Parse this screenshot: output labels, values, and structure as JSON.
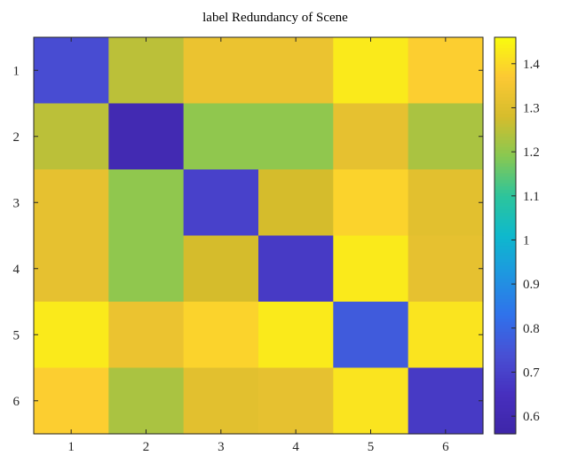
{
  "chart_data": {
    "type": "heatmap",
    "title": "label Redundancy of Scene",
    "xlabel": "",
    "ylabel": "",
    "x_categories": [
      "1",
      "2",
      "3",
      "4",
      "5",
      "6"
    ],
    "y_categories": [
      "1",
      "2",
      "3",
      "4",
      "5",
      "6"
    ],
    "values": [
      [
        0.73,
        1.25,
        1.33,
        1.33,
        1.43,
        1.38
      ],
      [
        1.25,
        0.6,
        1.2,
        1.2,
        1.32,
        1.23
      ],
      [
        1.32,
        1.2,
        0.7,
        1.28,
        1.39,
        1.31
      ],
      [
        1.32,
        1.2,
        1.28,
        0.68,
        1.43,
        1.32
      ],
      [
        1.43,
        1.33,
        1.39,
        1.43,
        0.77,
        1.42
      ],
      [
        1.38,
        1.23,
        1.31,
        1.32,
        1.42,
        0.68
      ]
    ],
    "colorbar": {
      "ticks": [
        "0.6",
        "0.7",
        "0.8",
        "0.9",
        "1",
        "1.1",
        "1.2",
        "1.3",
        "1.4"
      ],
      "tick_values": [
        0.6,
        0.7,
        0.8,
        0.9,
        1.0,
        1.1,
        1.2,
        1.3,
        1.4
      ],
      "range": [
        0.56,
        1.46
      ]
    },
    "colormap": "parula",
    "grid": false,
    "legend": "colorbar-right"
  }
}
